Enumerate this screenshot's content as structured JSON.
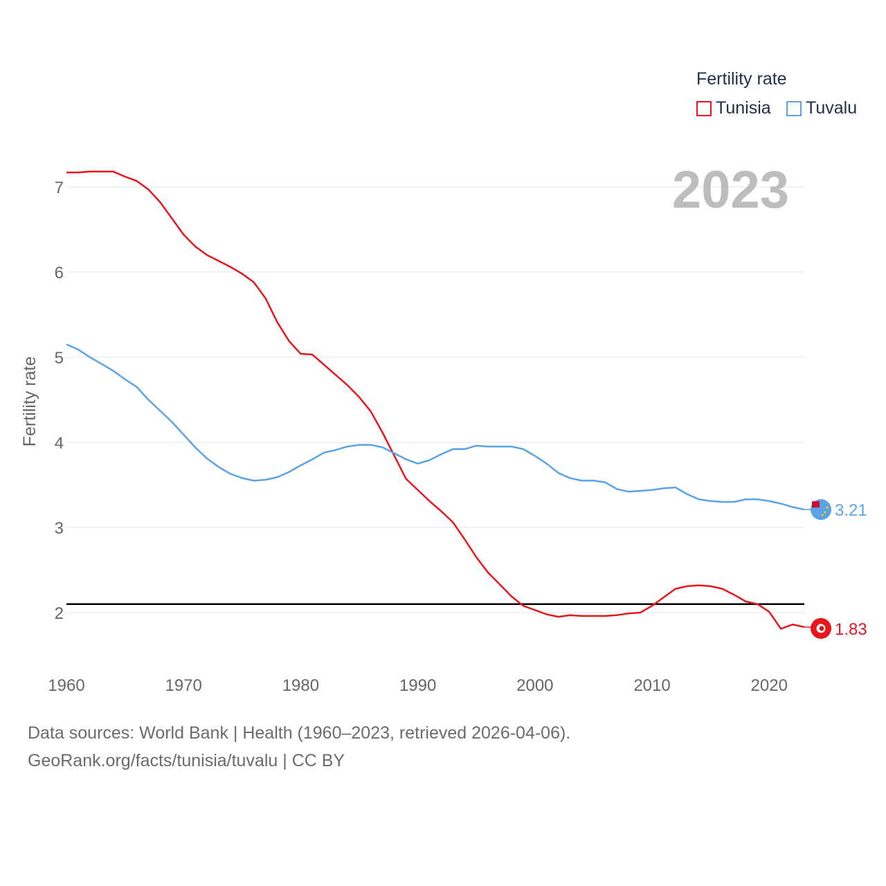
{
  "legend": {
    "title": "Fertility rate",
    "items": [
      {
        "label": "Tunisia",
        "color": "#e8161c"
      },
      {
        "label": "Tuvalu",
        "color": "#5aa3e6"
      }
    ]
  },
  "footer": {
    "line1": "Data sources: World Bank | Health (1960–2023, retrieved 2026-04-06).",
    "line2": "GeoRank.org/facts/tunisia/tuvalu | CC BY"
  },
  "chart_data": {
    "type": "line",
    "title": "Fertility rate",
    "year_label": "2023",
    "xlabel": "",
    "ylabel": "Fertility rate",
    "xlim": [
      1960,
      2023
    ],
    "ylim": [
      1.4,
      7.4
    ],
    "xticks": [
      1960,
      1970,
      1980,
      1990,
      2000,
      2010,
      2020
    ],
    "yticks": [
      2,
      3,
      4,
      5,
      6,
      7
    ],
    "grid": true,
    "reference_line": 2.1,
    "x": [
      1960,
      1961,
      1962,
      1963,
      1964,
      1965,
      1966,
      1967,
      1968,
      1969,
      1970,
      1971,
      1972,
      1973,
      1974,
      1975,
      1976,
      1977,
      1978,
      1979,
      1980,
      1981,
      1982,
      1983,
      1984,
      1985,
      1986,
      1987,
      1988,
      1989,
      1990,
      1991,
      1992,
      1993,
      1994,
      1995,
      1996,
      1997,
      1998,
      1999,
      2000,
      2001,
      2002,
      2003,
      2004,
      2005,
      2006,
      2007,
      2008,
      2009,
      2010,
      2011,
      2012,
      2013,
      2014,
      2015,
      2016,
      2017,
      2018,
      2019,
      2020,
      2021,
      2022,
      2023
    ],
    "series": [
      {
        "name": "Tunisia",
        "color": "#e8161c",
        "end_label": "1.83",
        "values": [
          7.17,
          7.17,
          7.18,
          7.18,
          7.18,
          7.12,
          7.07,
          6.97,
          6.82,
          6.63,
          6.44,
          6.3,
          6.2,
          6.13,
          6.06,
          5.98,
          5.88,
          5.69,
          5.41,
          5.19,
          5.04,
          5.03,
          4.91,
          4.79,
          4.67,
          4.53,
          4.36,
          4.11,
          3.84,
          3.57,
          3.44,
          3.31,
          3.19,
          3.06,
          2.86,
          2.65,
          2.47,
          2.33,
          2.19,
          2.08,
          2.03,
          1.98,
          1.95,
          1.97,
          1.96,
          1.96,
          1.96,
          1.97,
          1.99,
          2.0,
          2.08,
          2.18,
          2.28,
          2.31,
          2.32,
          2.31,
          2.28,
          2.21,
          2.13,
          2.1,
          2.01,
          1.81,
          1.86,
          1.83
        ]
      },
      {
        "name": "Tuvalu",
        "color": "#5aa3e6",
        "end_label": "3.21",
        "values": [
          5.15,
          5.09,
          5.0,
          4.92,
          4.84,
          4.74,
          4.65,
          4.5,
          4.37,
          4.24,
          4.09,
          3.94,
          3.81,
          3.71,
          3.63,
          3.58,
          3.55,
          3.56,
          3.59,
          3.65,
          3.73,
          3.8,
          3.88,
          3.91,
          3.95,
          3.97,
          3.97,
          3.94,
          3.87,
          3.8,
          3.75,
          3.79,
          3.86,
          3.92,
          3.92,
          3.96,
          3.95,
          3.95,
          3.95,
          3.92,
          3.84,
          3.75,
          3.64,
          3.58,
          3.55,
          3.55,
          3.53,
          3.45,
          3.42,
          3.43,
          3.44,
          3.46,
          3.47,
          3.39,
          3.33,
          3.31,
          3.3,
          3.3,
          3.33,
          3.33,
          3.31,
          3.28,
          3.24,
          3.21
        ]
      }
    ]
  }
}
